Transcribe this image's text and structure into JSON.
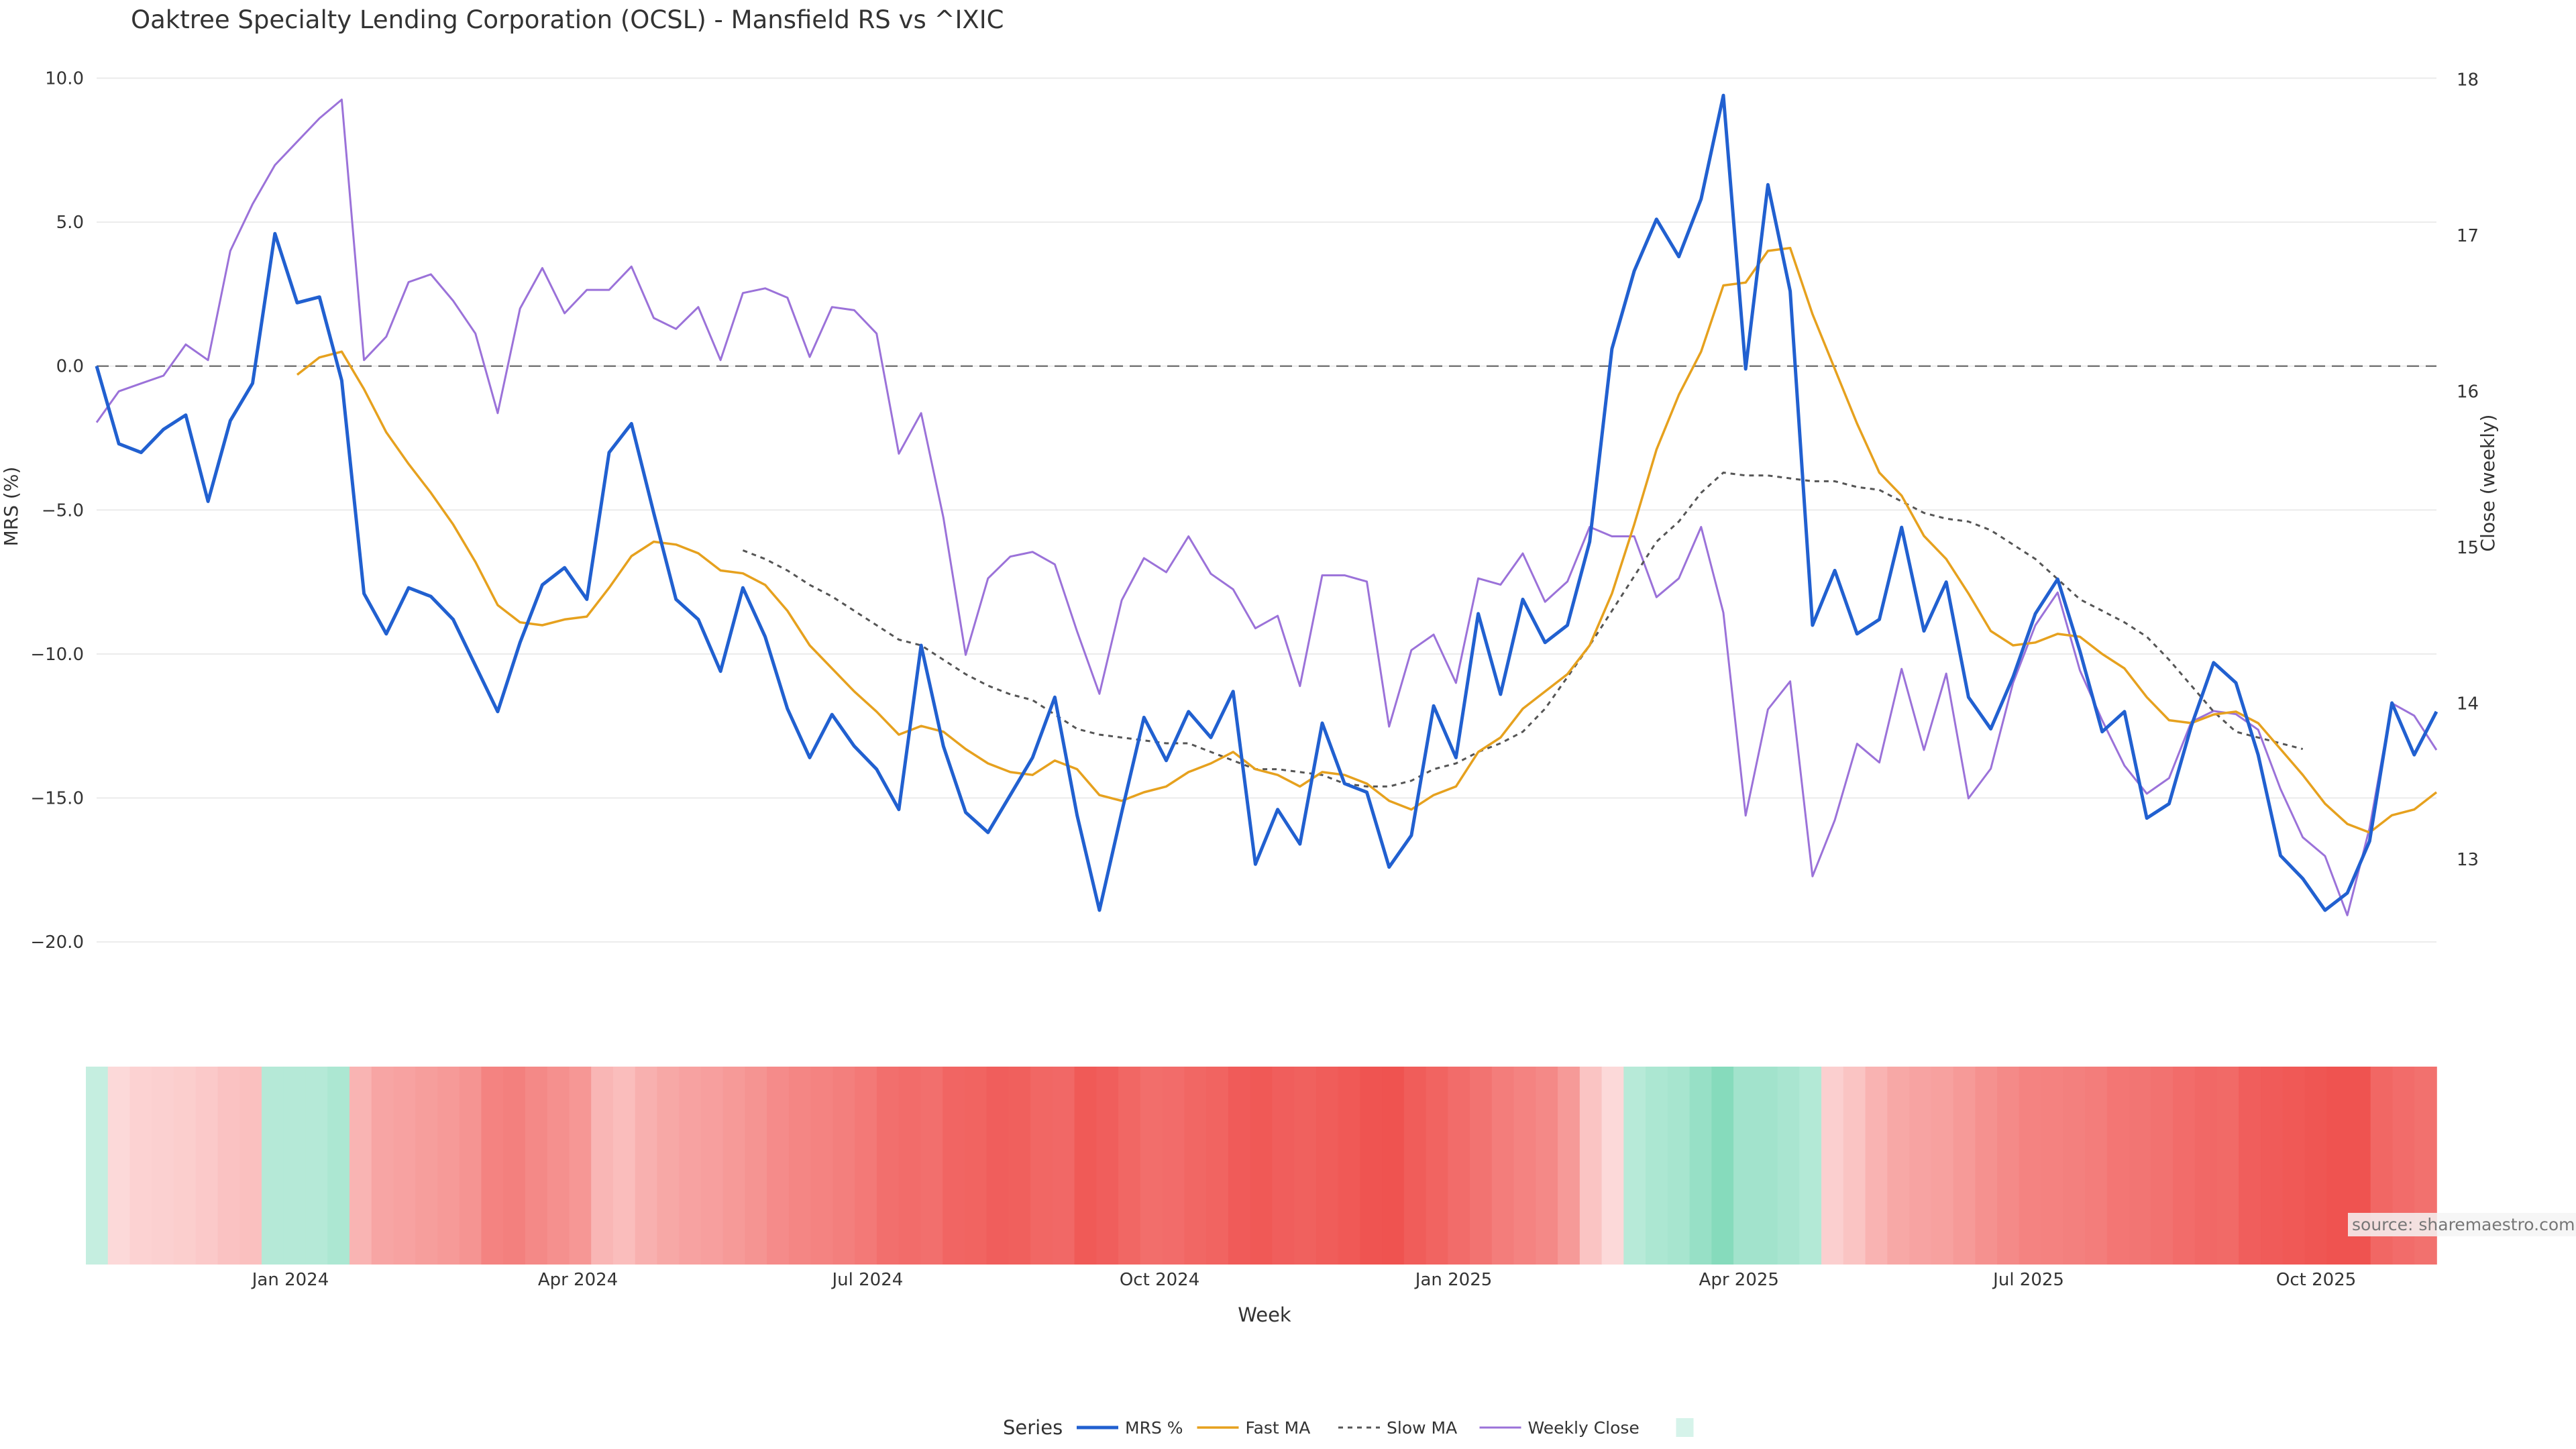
{
  "title": "Oaktree Specialty Lending Corporation (OCSL) - Mansfield RS vs ^IXIC",
  "source": "source: sharemaestro.com",
  "colors": {
    "mrs": "#2160d0",
    "fast_ma": "#e6a11e",
    "slow_ma": "#555555",
    "weekly_close": "#9b72d9",
    "zero_line": "#777777",
    "grid": "#ebebeb",
    "heat_neg_strong": "#ef5350",
    "heat_neg_weak": "#fde0e0",
    "heat_pos_weak": "#d6f3ea",
    "heat_pos_strong": "#7fd9b8"
  },
  "chart_data": {
    "type": "line",
    "xlabel": "Week",
    "ylabel": "MRS (%)",
    "y2label": "Close (weekly)",
    "ylim": [
      -22,
      10.5
    ],
    "y2lim": [
      12.1,
      18.1
    ],
    "yticks": [
      10.0,
      5.0,
      0.0,
      -5.0,
      -10.0,
      -15.0,
      -20.0
    ],
    "ytick_labels": [
      "10.0",
      "5.0",
      "0.0",
      "−5.0",
      "−10.0",
      "−15.0",
      "−20.0"
    ],
    "y2ticks": [
      18,
      17,
      16,
      15,
      14,
      13
    ],
    "xtick_labels": [
      "Jan 2024",
      "Apr 2024",
      "Jul 2024",
      "Oct 2024",
      "Jan 2025",
      "Apr 2025",
      "Jul 2025",
      "Oct 2025"
    ],
    "xtick_weeks": [
      8.7,
      21.6,
      34.6,
      47.7,
      60.9,
      73.7,
      86.7,
      99.6
    ],
    "reference_line": 0,
    "grid": true,
    "legend_title": "Series",
    "legend_position": "bottom",
    "series": [
      {
        "name": "MRS %",
        "axis": "left",
        "values": [
          0.0,
          -2.7,
          -3.0,
          -2.2,
          -1.7,
          -4.7,
          -1.9,
          -0.6,
          4.6,
          2.2,
          2.4,
          -0.5,
          -7.9,
          -9.3,
          -7.7,
          -8.0,
          -8.8,
          -10.4,
          -12.0,
          -9.6,
          -7.6,
          -7.0,
          -8.1,
          -3.0,
          -2.0,
          -5.1,
          -8.1,
          -8.8,
          -10.6,
          -7.7,
          -9.4,
          -11.9,
          -13.6,
          -12.1,
          -13.2,
          -14.0,
          -15.4,
          -9.7,
          -13.2,
          -15.5,
          -16.2,
          -14.9,
          -13.6,
          -11.5,
          -15.6,
          -18.9,
          -15.5,
          -12.2,
          -13.7,
          -12.0,
          -12.9,
          -11.3,
          -17.3,
          -15.4,
          -16.6,
          -12.4,
          -14.5,
          -14.8,
          -17.4,
          -16.3,
          -11.8,
          -13.6,
          -8.6,
          -11.4,
          -8.1,
          -9.6,
          -9.0,
          -6.1,
          0.6,
          3.3,
          5.1,
          3.8,
          5.8,
          9.4,
          -0.1,
          6.3,
          2.6,
          -9.0,
          -7.1,
          -9.3,
          -8.8,
          -5.6,
          -9.2,
          -7.5,
          -11.5,
          -12.6,
          -10.8,
          -8.6,
          -7.4,
          -9.9,
          -12.7,
          -12.0,
          -15.7,
          -15.2,
          -12.5,
          -10.3,
          -11.0,
          -13.5,
          -17.0,
          -17.8,
          -18.9,
          -18.3,
          -16.5,
          -11.7,
          -13.5,
          -12.0
        ]
      },
      {
        "name": "Fast MA",
        "axis": "left",
        "start_index": 9,
        "values": [
          -0.3,
          0.3,
          0.5,
          -0.8,
          -2.3,
          -3.4,
          -4.4,
          -5.5,
          -6.8,
          -8.3,
          -8.9,
          -9.0,
          -8.8,
          -8.7,
          -7.7,
          -6.6,
          -6.1,
          -6.2,
          -6.5,
          -7.1,
          -7.2,
          -7.6,
          -8.5,
          -9.7,
          -10.5,
          -11.3,
          -12.0,
          -12.8,
          -12.5,
          -12.7,
          -13.3,
          -13.8,
          -14.1,
          -14.2,
          -13.7,
          -14.0,
          -14.9,
          -15.1,
          -14.8,
          -14.6,
          -14.1,
          -13.8,
          -13.4,
          -14.0,
          -14.2,
          -14.6,
          -14.1,
          -14.2,
          -14.5,
          -15.1,
          -15.4,
          -14.9,
          -14.6,
          -13.4,
          -12.9,
          -11.9,
          -11.3,
          -10.7,
          -9.7,
          -7.9,
          -5.5,
          -2.9,
          -1.0,
          0.5,
          2.8,
          2.9,
          4.0,
          4.1,
          1.8,
          -0.1,
          -2.0,
          -3.7,
          -4.5,
          -5.9,
          -6.7,
          -7.9,
          -9.2,
          -9.7,
          -9.6,
          -9.3,
          -9.4,
          -10.0,
          -10.5,
          -11.5,
          -12.3,
          -12.4,
          -12.1,
          -12.0,
          -12.4,
          -13.3,
          -14.2,
          -15.2,
          -15.9,
          -16.2,
          -15.6,
          -15.4,
          -14.8
        ]
      },
      {
        "name": "Slow MA",
        "axis": "left",
        "start_index": 29,
        "values": [
          -6.4,
          -6.7,
          -7.1,
          -7.6,
          -8.0,
          -8.5,
          -9.0,
          -9.5,
          -9.7,
          -10.2,
          -10.7,
          -11.1,
          -11.4,
          -11.6,
          -12.1,
          -12.6,
          -12.8,
          -12.9,
          -13.0,
          -13.1,
          -13.1,
          -13.4,
          -13.7,
          -14.0,
          -14.0,
          -14.1,
          -14.2,
          -14.5,
          -14.6,
          -14.6,
          -14.4,
          -14.0,
          -13.8,
          -13.4,
          -13.1,
          -12.7,
          -11.9,
          -10.8,
          -9.7,
          -8.5,
          -7.3,
          -6.1,
          -5.4,
          -4.4,
          -3.7,
          -3.8,
          -3.8,
          -3.9,
          -4.0,
          -4.0,
          -4.2,
          -4.3,
          -4.7,
          -5.1,
          -5.3,
          -5.4,
          -5.7,
          -6.2,
          -6.7,
          -7.4,
          -8.1,
          -8.5,
          -8.9,
          -9.4,
          -10.2,
          -11.1,
          -12.0,
          -12.7,
          -12.9,
          -13.1,
          -13.3
        ]
      },
      {
        "name": "Weekly Close",
        "axis": "right",
        "values": [
          15.8,
          16.0,
          16.05,
          16.1,
          16.3,
          16.2,
          16.9,
          17.2,
          17.45,
          17.6,
          17.75,
          17.87,
          16.2,
          16.35,
          16.7,
          16.75,
          16.58,
          16.37,
          15.86,
          16.53,
          16.79,
          16.5,
          16.65,
          16.65,
          16.8,
          16.47,
          16.4,
          16.54,
          16.2,
          16.63,
          16.66,
          16.6,
          16.22,
          16.54,
          16.52,
          16.37,
          15.6,
          15.86,
          15.19,
          14.31,
          14.8,
          14.94,
          14.97,
          14.89,
          14.46,
          14.06,
          14.66,
          14.93,
          14.84,
          15.07,
          14.83,
          14.73,
          14.48,
          14.56,
          14.11,
          14.82,
          14.82,
          14.78,
          13.85,
          14.34,
          14.44,
          14.13,
          14.8,
          14.76,
          14.96,
          14.65,
          14.78,
          15.13,
          15.07,
          15.07,
          14.68,
          14.8,
          15.13,
          14.58,
          13.28,
          13.96,
          14.14,
          12.89,
          13.25,
          13.74,
          13.62,
          14.22,
          13.7,
          14.19,
          13.39,
          13.58,
          14.13,
          14.5,
          14.71,
          14.21,
          13.89,
          13.6,
          13.42,
          13.52,
          13.88,
          13.95,
          13.93,
          13.83,
          13.45,
          13.14,
          13.02,
          12.64,
          13.2,
          14.0,
          13.92,
          13.7
        ]
      },
      {
        "name": "",
        "type": "heatmap",
        "values": [
          1.0,
          -0.5,
          -1.0,
          -1.1,
          -1.3,
          -1.6,
          -2.1,
          -2.3,
          1.9,
          1.9,
          1.9,
          2.4,
          -3.1,
          -4.2,
          -4.4,
          -4.7,
          -5.0,
          -5.4,
          -6.6,
          -6.8,
          -6.2,
          -5.7,
          -5.2,
          -3.0,
          -2.5,
          -3.4,
          -4.0,
          -4.4,
          -4.6,
          -5.0,
          -5.4,
          -6.0,
          -6.4,
          -6.6,
          -6.9,
          -7.3,
          -8.0,
          -8.2,
          -8.0,
          -8.7,
          -8.8,
          -9.2,
          -9.1,
          -8.6,
          -8.5,
          -9.5,
          -9.2,
          -8.6,
          -8.1,
          -8.2,
          -8.6,
          -8.8,
          -9.4,
          -9.6,
          -9.2,
          -9.0,
          -9.3,
          -9.6,
          -9.9,
          -10.0,
          -9.3,
          -8.8,
          -8.2,
          -7.7,
          -7.0,
          -6.6,
          -6.2,
          -5.0,
          -2.0,
          -0.5,
          1.8,
          2.4,
          2.7,
          3.6,
          4.6,
          3.0,
          3.0,
          2.6,
          2.0,
          -1.2,
          -2.0,
          -3.2,
          -4.0,
          -4.3,
          -4.5,
          -5.0,
          -5.6,
          -6.1,
          -6.6,
          -6.7,
          -6.8,
          -7.0,
          -7.5,
          -7.6,
          -7.8,
          -8.2,
          -8.5,
          -8.4,
          -9.2,
          -9.4,
          -9.6,
          -9.8,
          -10.0,
          -10.0,
          -8.6,
          -8.2,
          -7.9
        ]
      }
    ]
  }
}
